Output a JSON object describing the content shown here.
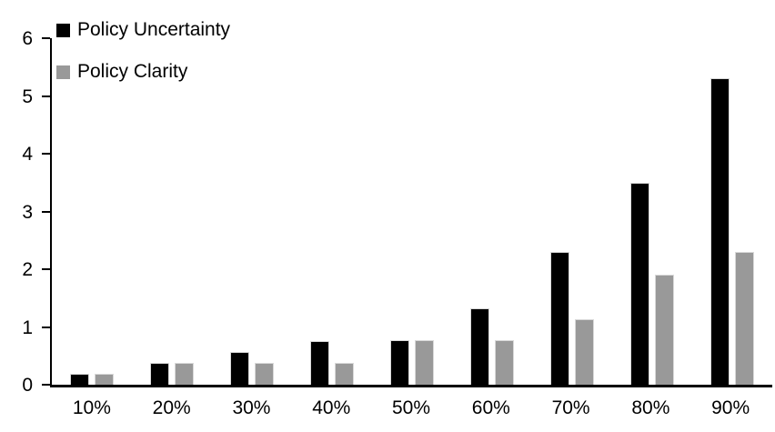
{
  "chart_data": {
    "type": "bar",
    "title": "",
    "xlabel": "",
    "ylabel": "",
    "categories": [
      "10%",
      "20%",
      "30%",
      "40%",
      "50%",
      "60%",
      "70%",
      "80%",
      "90%"
    ],
    "series": [
      {
        "name": "Policy Uncertainty",
        "color": "#000000",
        "values": [
          0.19,
          0.38,
          0.57,
          0.76,
          0.77,
          1.33,
          2.3,
          3.5,
          5.3
        ]
      },
      {
        "name": "Policy Clarity",
        "color": "#999999",
        "values": [
          0.19,
          0.38,
          0.38,
          0.38,
          0.77,
          0.77,
          1.13,
          1.9,
          2.3
        ]
      }
    ],
    "ylim": [
      0,
      6
    ],
    "yticks": [
      0,
      1,
      2,
      3,
      4,
      5,
      6
    ],
    "grid": false,
    "legend_position": "top-left",
    "axis_color": "#000000",
    "background_color": "#ffffff"
  }
}
